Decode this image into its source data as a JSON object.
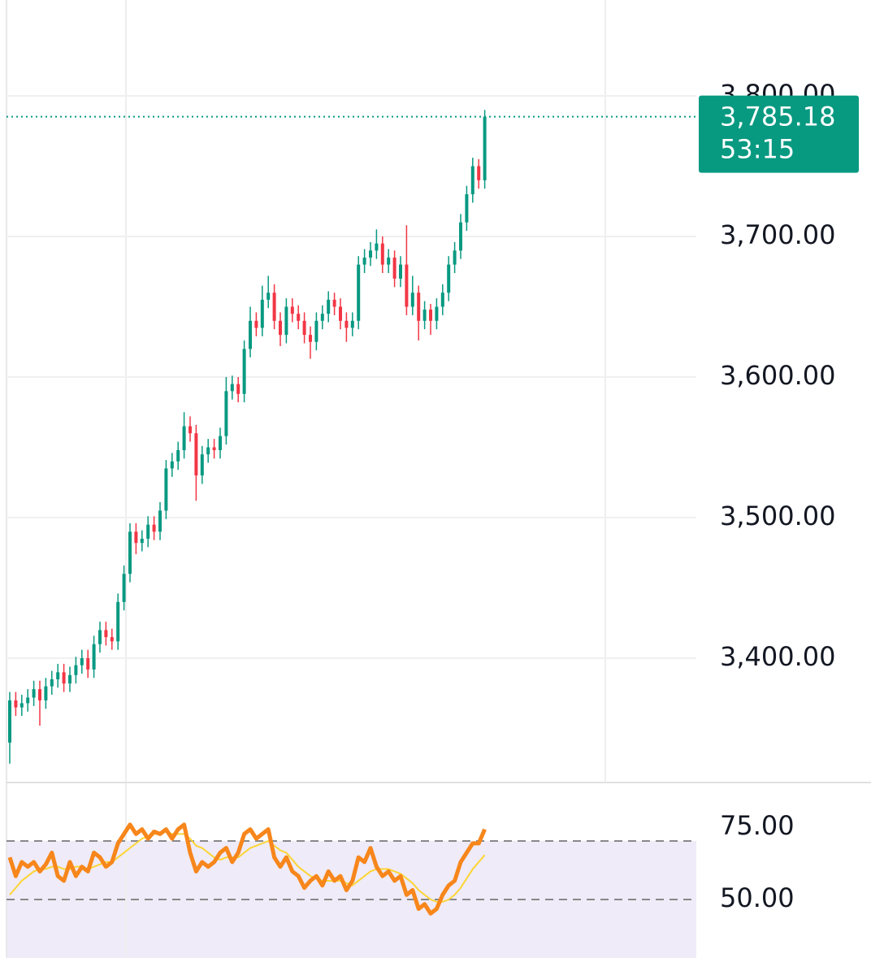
{
  "chart_data": [
    {
      "type": "candlestick",
      "up_color": "#089981",
      "down_color": "#f23645",
      "ylim": [
        3311.6,
        3868.2
      ],
      "yticks": [
        {
          "value": 3800,
          "label": "3,800.00"
        },
        {
          "value": 3700,
          "label": "3,700.00"
        },
        {
          "value": 3600,
          "label": "3,600.00"
        },
        {
          "value": 3500,
          "label": "3,500.00"
        },
        {
          "value": 3400,
          "label": "3,400.00"
        }
      ],
      "grid": true,
      "last_price": {
        "value": 3785.18,
        "label": "3,785.18"
      },
      "countdown": "53:15",
      "open": [
        3340,
        3370,
        3365,
        3368,
        3372,
        3378,
        3370,
        3380,
        3385,
        3390,
        3382,
        3388,
        3395,
        3400,
        3392,
        3410,
        3420,
        3415,
        3412,
        3440,
        3460,
        3490,
        3482,
        3485,
        3495,
        3490,
        3505,
        3535,
        3540,
        3548,
        3565,
        3560,
        3530,
        3545,
        3550,
        3548,
        3558,
        3590,
        3595,
        3588,
        3620,
        3640,
        3635,
        3655,
        3660,
        3640,
        3630,
        3650,
        3645,
        3640,
        3630,
        3625,
        3640,
        3645,
        3655,
        3650,
        3640,
        3635,
        3640,
        3680,
        3685,
        3690,
        3695,
        3680,
        3685,
        3670,
        3680,
        3650,
        3660,
        3640,
        3648,
        3640,
        3650,
        3660,
        3680,
        3690,
        3710,
        3730,
        3750,
        3740
      ],
      "high": [
        3376,
        3376,
        3374,
        3378,
        3384,
        3384,
        3386,
        3391,
        3396,
        3396,
        3394,
        3401,
        3406,
        3406,
        3416,
        3426,
        3426,
        3421,
        3446,
        3466,
        3496,
        3496,
        3491,
        3501,
        3501,
        3511,
        3541,
        3546,
        3554,
        3575,
        3572,
        3566,
        3551,
        3556,
        3556,
        3564,
        3600,
        3601,
        3600,
        3626,
        3650,
        3646,
        3665,
        3672,
        3666,
        3646,
        3656,
        3656,
        3651,
        3646,
        3636,
        3646,
        3651,
        3661,
        3660,
        3656,
        3646,
        3646,
        3686,
        3691,
        3696,
        3705,
        3700,
        3691,
        3690,
        3686,
        3708,
        3672,
        3665,
        3654,
        3652,
        3656,
        3666,
        3686,
        3696,
        3716,
        3736,
        3756,
        3755,
        3790
      ],
      "low": [
        3325,
        3359,
        3359,
        3362,
        3366,
        3352,
        3364,
        3374,
        3379,
        3376,
        3376,
        3382,
        3389,
        3386,
        3386,
        3404,
        3409,
        3406,
        3406,
        3434,
        3454,
        3474,
        3476,
        3479,
        3484,
        3484,
        3499,
        3529,
        3534,
        3542,
        3554,
        3512,
        3524,
        3539,
        3542,
        3542,
        3552,
        3584,
        3582,
        3582,
        3614,
        3629,
        3629,
        3649,
        3634,
        3622,
        3624,
        3639,
        3634,
        3624,
        3613,
        3619,
        3634,
        3639,
        3644,
        3634,
        3625,
        3629,
        3634,
        3674,
        3679,
        3684,
        3674,
        3674,
        3664,
        3664,
        3644,
        3644,
        3626,
        3634,
        3630,
        3634,
        3644,
        3654,
        3674,
        3684,
        3704,
        3724,
        3734,
        3734
      ],
      "close": [
        3370,
        3365,
        3368,
        3372,
        3378,
        3370,
        3380,
        3385,
        3390,
        3382,
        3388,
        3395,
        3400,
        3392,
        3410,
        3420,
        3415,
        3412,
        3440,
        3460,
        3490,
        3482,
        3485,
        3495,
        3490,
        3505,
        3535,
        3540,
        3548,
        3565,
        3560,
        3530,
        3545,
        3550,
        3548,
        3558,
        3590,
        3595,
        3588,
        3620,
        3640,
        3635,
        3655,
        3660,
        3640,
        3630,
        3650,
        3645,
        3640,
        3630,
        3625,
        3640,
        3645,
        3655,
        3650,
        3640,
        3635,
        3640,
        3680,
        3685,
        3690,
        3695,
        3680,
        3685,
        3670,
        3680,
        3650,
        3660,
        3640,
        3648,
        3640,
        3650,
        3660,
        3680,
        3690,
        3710,
        3730,
        3750,
        3740,
        3785.18
      ]
    },
    {
      "type": "line",
      "ylim": [
        25,
        100
      ],
      "yticks": [
        {
          "value": 75,
          "label": "75.00"
        },
        {
          "value": 50,
          "label": "50.00"
        }
      ],
      "series": [
        {
          "color": "#f7861b",
          "values": [
            68,
            60,
            66,
            64,
            66,
            62,
            65,
            70,
            60,
            58,
            66,
            60,
            64,
            62,
            70,
            68,
            64,
            66,
            74,
            78,
            82,
            78,
            80,
            76,
            79,
            78,
            80,
            76,
            80,
            82,
            70,
            62,
            66,
            64,
            66,
            70,
            72,
            66,
            70,
            78,
            80,
            76,
            78,
            80,
            68,
            64,
            68,
            62,
            60,
            55,
            58,
            60,
            56,
            62,
            58,
            60,
            54,
            58,
            68,
            66,
            72,
            64,
            60,
            62,
            58,
            60,
            52,
            54,
            46,
            48,
            44,
            46,
            52,
            56,
            58,
            66,
            70,
            74,
            74,
            80
          ]
        },
        {
          "color": "#fcd535",
          "values": [
            52,
            55,
            58,
            60,
            62,
            63,
            63,
            64,
            64,
            63,
            63,
            64,
            64,
            63,
            64,
            65,
            66,
            66,
            68,
            70,
            72,
            74,
            76,
            77,
            78,
            78,
            79,
            78,
            78,
            78,
            76,
            73,
            72,
            70,
            68,
            67,
            68,
            68,
            68,
            70,
            72,
            73,
            74,
            75,
            73,
            71,
            70,
            67,
            64,
            62,
            60,
            59,
            58,
            58,
            58,
            58,
            57,
            56,
            58,
            60,
            62,
            63,
            63,
            63,
            62,
            61,
            59,
            57,
            54,
            52,
            50,
            49,
            49,
            50,
            52,
            55,
            59,
            63,
            66,
            69
          ]
        }
      ]
    }
  ]
}
